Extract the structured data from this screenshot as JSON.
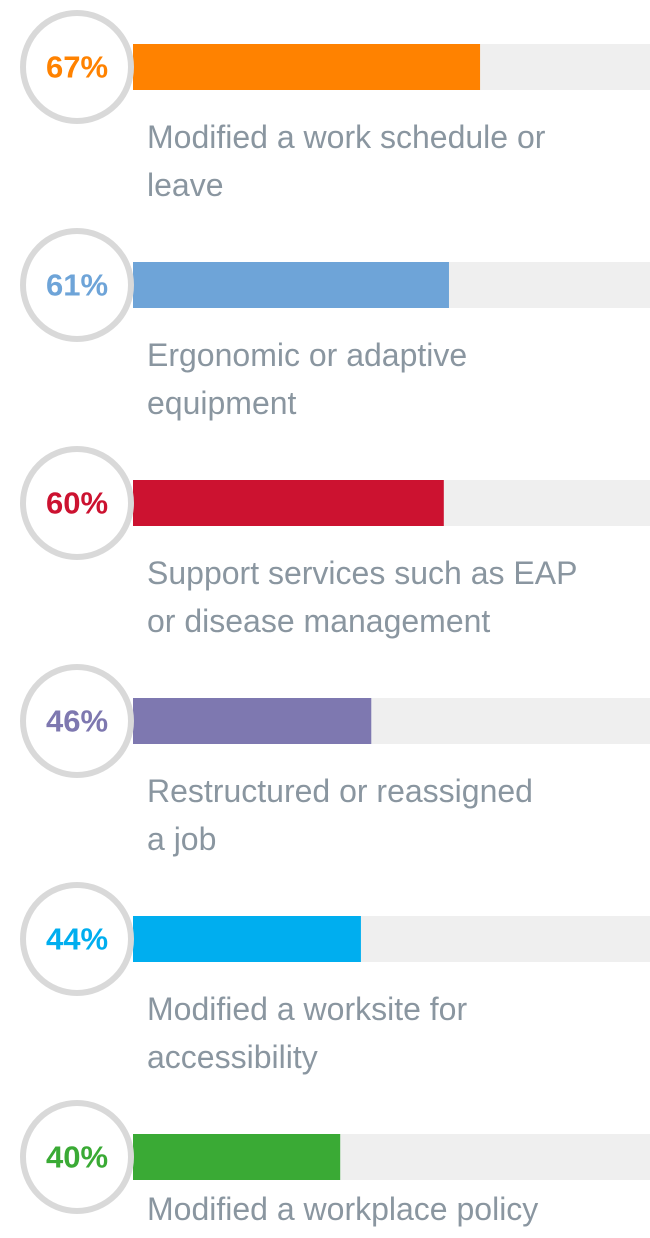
{
  "chart_data": {
    "type": "bar",
    "categories": [
      "Modified a work schedule or\nleave",
      "Ergonomic or adaptive\nequipment",
      "Support services such as EAP\nor disease management",
      "Restructured or reassigned\na job",
      "Modified a worksite for\naccessibility",
      "Modified a workplace policy"
    ],
    "values": [
      67,
      61,
      60,
      46,
      44,
      40
    ],
    "value_labels": [
      "67%",
      "61%",
      "60%",
      "46%",
      "44%",
      "40%"
    ],
    "colors": [
      "#ff8200",
      "#6ea4d8",
      "#cc1230",
      "#7e78b0",
      "#00aeef",
      "#3aaa35"
    ],
    "xlim": [
      0,
      100
    ]
  }
}
